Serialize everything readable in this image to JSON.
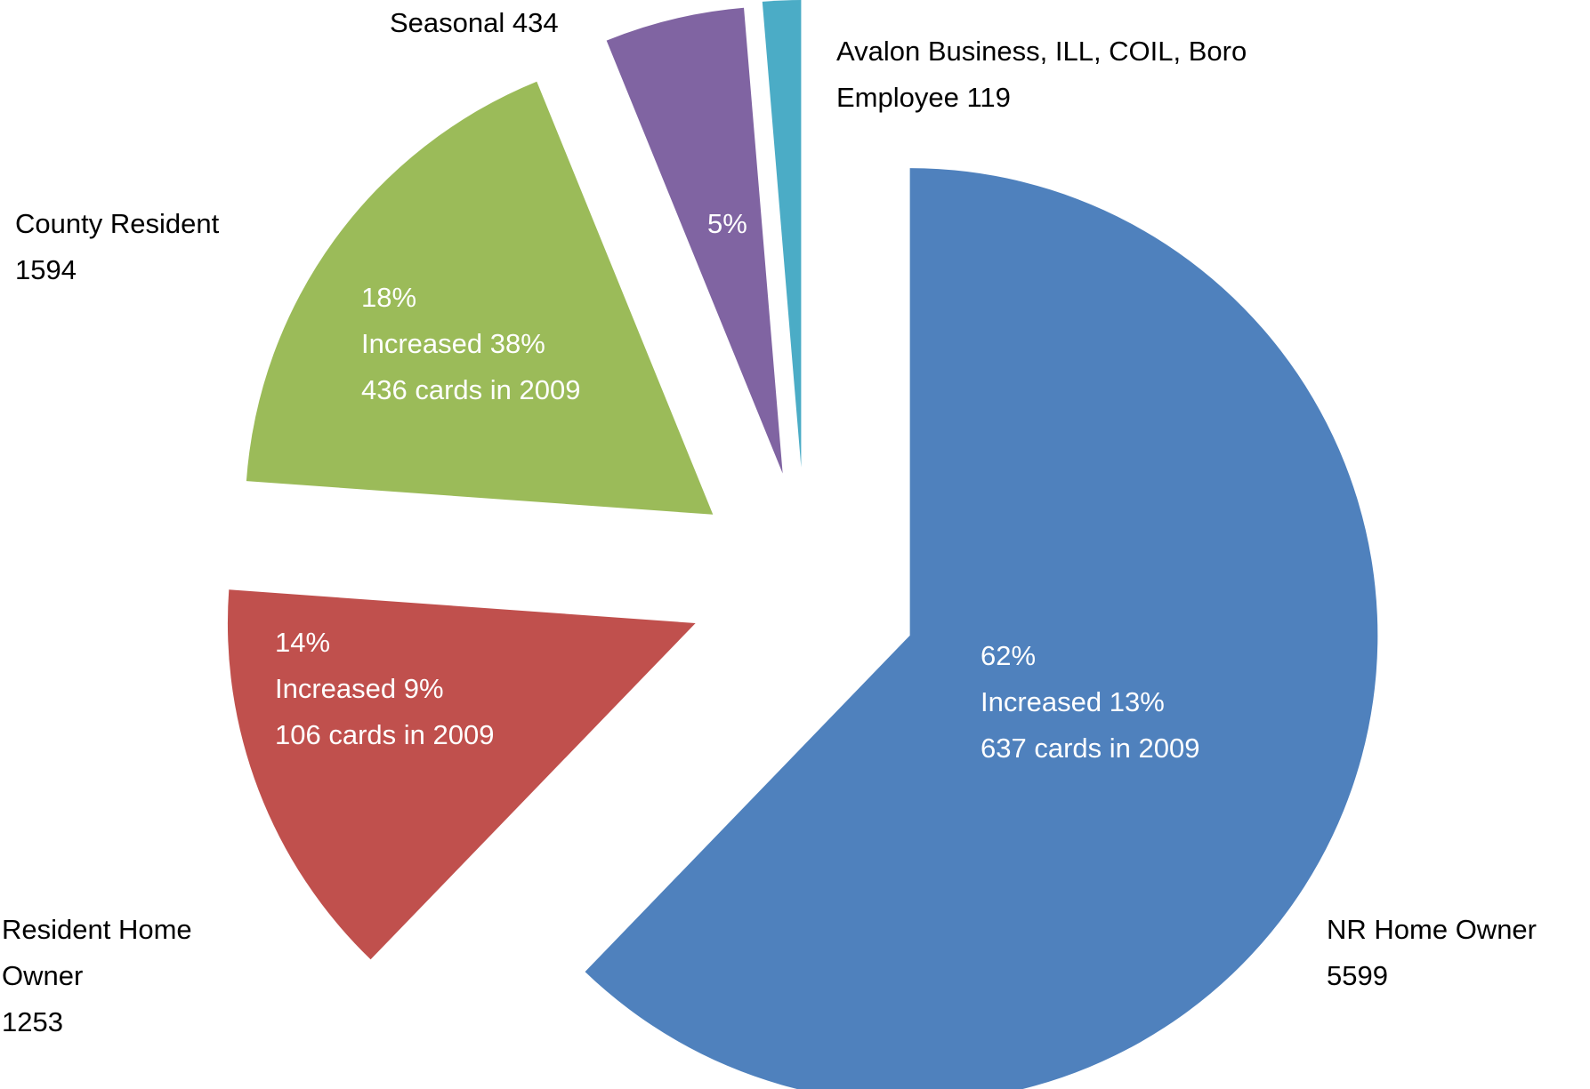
{
  "chart_data": {
    "type": "pie",
    "categories": [
      "NR Home Owner",
      "Resident Home Owner",
      "County Resident",
      "Seasonal",
      "Avalon Business, ILL, COIL, Boro Employee"
    ],
    "values": [
      5599,
      1253,
      1594,
      434,
      119
    ],
    "colors": [
      "#4f81bd",
      "#c0504d",
      "#9bbb59",
      "#8064a2",
      "#4bacc6"
    ],
    "percent_labels": [
      "62%",
      "14%",
      "18%",
      "5%",
      null
    ],
    "notes": [
      [
        "Increased  13%",
        "637 cards in 2009"
      ],
      [
        "Increased 9%",
        "106 cards in 2009"
      ],
      [
        "Increased 38%",
        "436 cards in 2009"
      ],
      [],
      []
    ]
  }
}
